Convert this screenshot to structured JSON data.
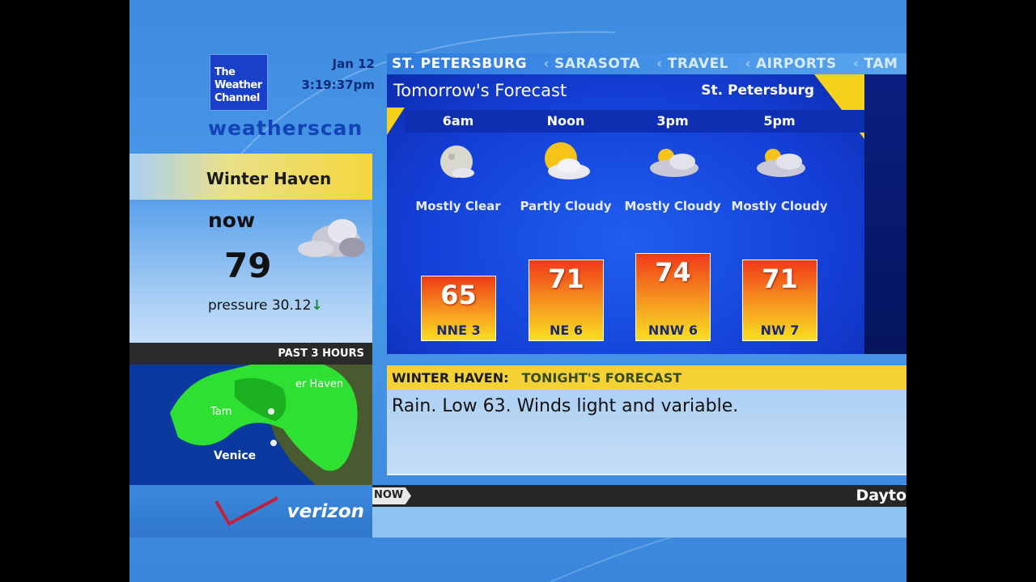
{
  "brand": {
    "logo_text": "The Weather Channel",
    "product": "weatherscan",
    "sponsor": "verizon"
  },
  "clock": {
    "date": "Jan 12",
    "time": "3:19:37pm"
  },
  "current": {
    "location": "Winter Haven",
    "now_label": "now",
    "temperature": "79",
    "pressure_label": "pressure",
    "pressure_value": "30.12",
    "pressure_trend": "↓",
    "icon": "cloudy-icon"
  },
  "radar": {
    "label": "PAST 3 HOURS",
    "places": [
      "Tam",
      "er Haven",
      "Venice"
    ]
  },
  "ticker": {
    "current": "ST. PETERSBURG",
    "items": [
      "SARASOTA",
      "TRAVEL",
      "AIRPORTS",
      "TAM"
    ]
  },
  "forecast": {
    "title": "Tomorrow's Forecast",
    "city": "St. Petersburg",
    "periods": [
      {
        "time": "6am",
        "condition": "Mostly Clear",
        "icon": "moon-cloud-icon",
        "temp": "65",
        "wind": "NNE 3"
      },
      {
        "time": "Noon",
        "condition": "Partly Cloudy",
        "icon": "sun-cloud-icon",
        "temp": "71",
        "wind": "NE 6"
      },
      {
        "time": "3pm",
        "condition": "Mostly Cloudy",
        "icon": "mostly-cloudy-icon",
        "temp": "74",
        "wind": "NNW 6"
      },
      {
        "time": "5pm",
        "condition": "Mostly Cloudy",
        "icon": "mostly-cloudy-icon",
        "temp": "71",
        "wind": "NW 7"
      }
    ]
  },
  "tonight": {
    "location": "WINTER HAVEN:",
    "title": "TONIGHT'S FORECAST",
    "text": "Rain. Low 63. Winds light and variable."
  },
  "bottom_ticker": {
    "tag": "NOW",
    "text": "Dayto"
  },
  "colors": {
    "accent_yellow": "#f6d21c",
    "panel_blue": "#1440d8"
  }
}
